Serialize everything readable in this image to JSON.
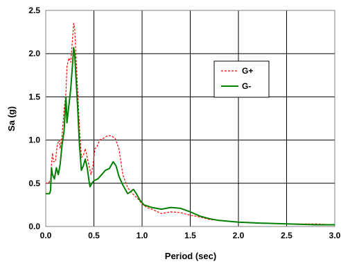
{
  "chart_data": {
    "type": "line",
    "title": "",
    "xlabel": "Period (sec)",
    "ylabel": "Sa (g)",
    "xlim": [
      0,
      3.0
    ],
    "ylim": [
      0,
      2.5
    ],
    "xticks": [
      "0.0",
      "0.5",
      "1.0",
      "1.5",
      "2.0",
      "2.5",
      "3.0"
    ],
    "yticks": [
      "0.0",
      "0.5",
      "1.0",
      "1.5",
      "2.0",
      "2.5"
    ],
    "grid": true,
    "legend_position": "top-right",
    "series": [
      {
        "name": "G+",
        "color": "#ff0000",
        "style": "dashed",
        "points": [
          [
            0.0,
            0.5
          ],
          [
            0.03,
            0.5
          ],
          [
            0.05,
            0.55
          ],
          [
            0.06,
            0.72
          ],
          [
            0.07,
            0.85
          ],
          [
            0.08,
            0.75
          ],
          [
            0.1,
            0.75
          ],
          [
            0.12,
            0.95
          ],
          [
            0.14,
            1.0
          ],
          [
            0.15,
            0.9
          ],
          [
            0.17,
            1.05
          ],
          [
            0.19,
            1.35
          ],
          [
            0.21,
            1.55
          ],
          [
            0.22,
            1.85
          ],
          [
            0.24,
            1.95
          ],
          [
            0.26,
            1.9
          ],
          [
            0.27,
            2.05
          ],
          [
            0.28,
            2.2
          ],
          [
            0.29,
            2.35
          ],
          [
            0.3,
            2.3
          ],
          [
            0.31,
            2.05
          ],
          [
            0.33,
            1.6
          ],
          [
            0.35,
            1.15
          ],
          [
            0.37,
            0.8
          ],
          [
            0.39,
            0.82
          ],
          [
            0.41,
            0.9
          ],
          [
            0.43,
            0.8
          ],
          [
            0.45,
            0.7
          ],
          [
            0.47,
            0.6
          ],
          [
            0.49,
            0.7
          ],
          [
            0.51,
            0.9
          ],
          [
            0.53,
            0.92
          ],
          [
            0.56,
            1.0
          ],
          [
            0.6,
            1.02
          ],
          [
            0.64,
            1.05
          ],
          [
            0.68,
            1.05
          ],
          [
            0.72,
            1.02
          ],
          [
            0.76,
            0.9
          ],
          [
            0.8,
            0.6
          ],
          [
            0.85,
            0.45
          ],
          [
            0.9,
            0.38
          ],
          [
            0.95,
            0.33
          ],
          [
            1.0,
            0.26
          ],
          [
            1.05,
            0.22
          ],
          [
            1.1,
            0.2
          ],
          [
            1.2,
            0.15
          ],
          [
            1.3,
            0.17
          ],
          [
            1.4,
            0.16
          ],
          [
            1.5,
            0.13
          ],
          [
            1.6,
            0.11
          ],
          [
            1.7,
            0.08
          ],
          [
            1.8,
            0.07
          ],
          [
            2.0,
            0.05
          ],
          [
            2.2,
            0.04
          ],
          [
            2.5,
            0.03
          ],
          [
            2.8,
            0.03
          ],
          [
            3.0,
            0.02
          ]
        ]
      },
      {
        "name": "G-",
        "color": "#008000",
        "style": "solid",
        "points": [
          [
            0.0,
            0.38
          ],
          [
            0.04,
            0.38
          ],
          [
            0.05,
            0.42
          ],
          [
            0.06,
            0.68
          ],
          [
            0.07,
            0.6
          ],
          [
            0.09,
            0.55
          ],
          [
            0.11,
            0.68
          ],
          [
            0.13,
            0.6
          ],
          [
            0.15,
            0.72
          ],
          [
            0.17,
            0.95
          ],
          [
            0.19,
            1.1
          ],
          [
            0.21,
            1.5
          ],
          [
            0.22,
            1.2
          ],
          [
            0.24,
            1.4
          ],
          [
            0.26,
            1.6
          ],
          [
            0.28,
            1.9
          ],
          [
            0.29,
            2.07
          ],
          [
            0.3,
            2.0
          ],
          [
            0.31,
            1.8
          ],
          [
            0.33,
            1.4
          ],
          [
            0.35,
            0.95
          ],
          [
            0.37,
            0.65
          ],
          [
            0.39,
            0.7
          ],
          [
            0.41,
            0.78
          ],
          [
            0.43,
            0.68
          ],
          [
            0.45,
            0.52
          ],
          [
            0.46,
            0.46
          ],
          [
            0.48,
            0.5
          ],
          [
            0.5,
            0.53
          ],
          [
            0.54,
            0.55
          ],
          [
            0.58,
            0.6
          ],
          [
            0.62,
            0.65
          ],
          [
            0.66,
            0.67
          ],
          [
            0.7,
            0.75
          ],
          [
            0.73,
            0.7
          ],
          [
            0.76,
            0.58
          ],
          [
            0.8,
            0.48
          ],
          [
            0.85,
            0.38
          ],
          [
            0.88,
            0.4
          ],
          [
            0.91,
            0.43
          ],
          [
            0.94,
            0.38
          ],
          [
            0.98,
            0.3
          ],
          [
            1.02,
            0.25
          ],
          [
            1.1,
            0.22
          ],
          [
            1.2,
            0.2
          ],
          [
            1.3,
            0.22
          ],
          [
            1.4,
            0.21
          ],
          [
            1.5,
            0.17
          ],
          [
            1.6,
            0.12
          ],
          [
            1.7,
            0.09
          ],
          [
            1.8,
            0.07
          ],
          [
            2.0,
            0.05
          ],
          [
            2.2,
            0.04
          ],
          [
            2.5,
            0.03
          ],
          [
            2.8,
            0.02
          ],
          [
            3.0,
            0.02
          ]
        ]
      }
    ]
  }
}
